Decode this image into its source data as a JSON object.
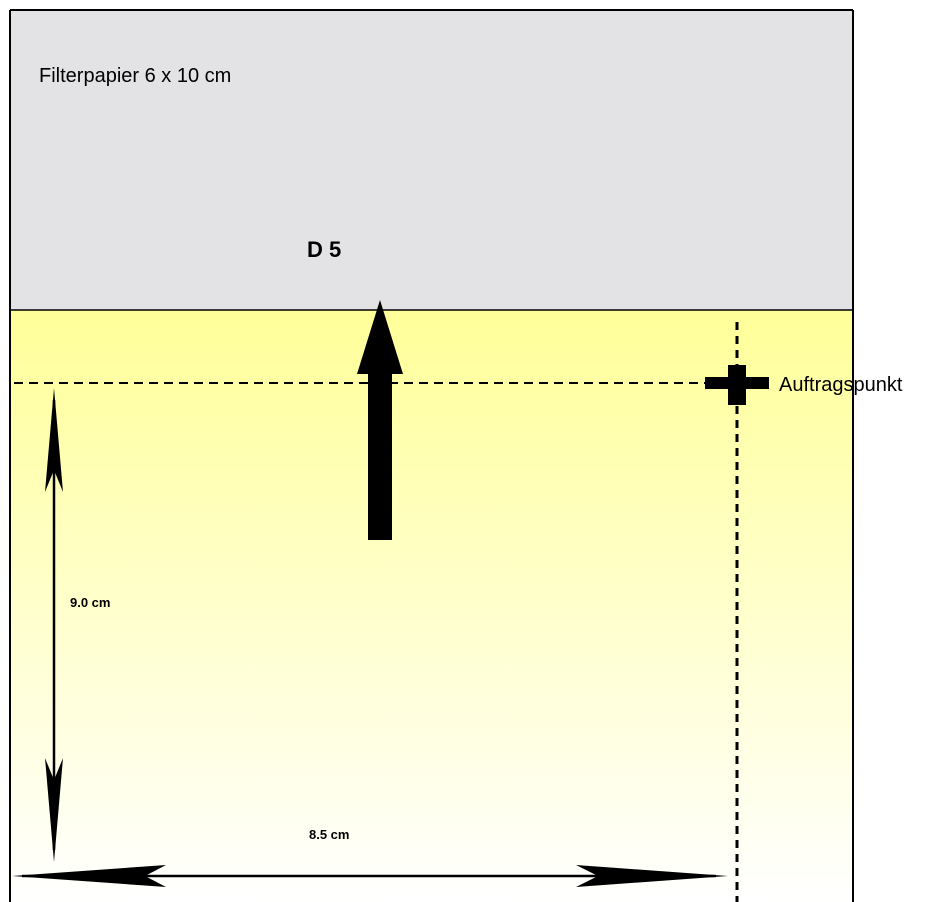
{
  "diagram": {
    "paper_label": "Filterpapier 6 x 10 cm",
    "substance_label": "D 5",
    "application_point_label": "Auftragspunkt",
    "vertical_dimension": "9.0 cm",
    "horizontal_dimension": "8.5 cm"
  },
  "colors": {
    "paper_top": "#e3e3e6",
    "solvent_top": "#ffff99",
    "solvent_bottom": "#ffffff",
    "lines": "#000000"
  }
}
